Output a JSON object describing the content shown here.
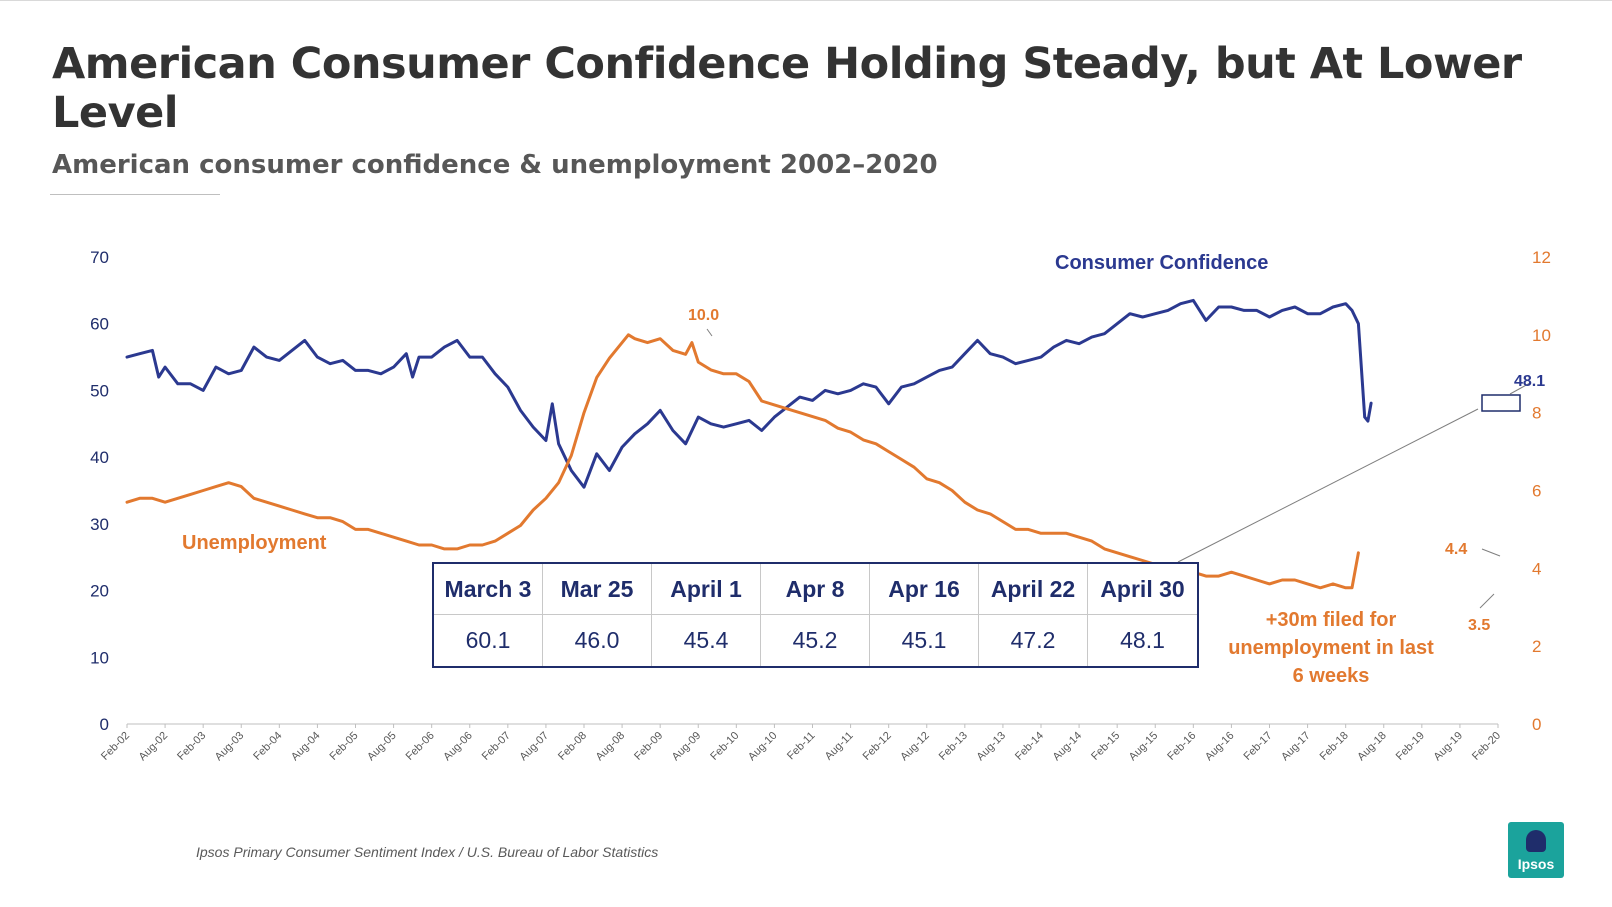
{
  "title": "American Consumer Confidence Holding Steady, but At Lower Level",
  "subtitle": "American consumer confidence & unemployment 2002–2020",
  "source": "Ipsos Primary Consumer Sentiment Index / U.S. Bureau of Labor Statistics",
  "logo_text": "Ipsos",
  "colors": {
    "confidence": "#2b3990",
    "unemployment": "#e2792f",
    "axis": "#bfbfbf"
  },
  "table": {
    "headers": [
      "March 3",
      "Mar 25",
      "April 1",
      "Apr 8",
      "Apr 16",
      "April 22",
      "April 30"
    ],
    "values": [
      "60.1",
      "46.0",
      "45.4",
      "45.2",
      "45.1",
      "47.2",
      "48.1"
    ]
  },
  "chart_data": {
    "type": "line",
    "title": "American consumer confidence & unemployment 2002–2020",
    "x_tick_labels": [
      "Feb-02",
      "Aug-02",
      "Feb-03",
      "Aug-03",
      "Feb-04",
      "Aug-04",
      "Feb-05",
      "Aug-05",
      "Feb-06",
      "Aug-06",
      "Feb-07",
      "Aug-07",
      "Feb-08",
      "Aug-08",
      "Feb-09",
      "Aug-09",
      "Feb-10",
      "Aug-10",
      "Feb-11",
      "Aug-11",
      "Feb-12",
      "Aug-12",
      "Feb-13",
      "Aug-13",
      "Feb-14",
      "Aug-14",
      "Feb-15",
      "Aug-15",
      "Feb-16",
      "Aug-16",
      "Feb-17",
      "Aug-17",
      "Feb-18",
      "Aug-18",
      "Feb-19",
      "Aug-19",
      "Feb-20"
    ],
    "y_left": {
      "ticks": [
        "0",
        "10",
        "20",
        "30",
        "40",
        "50",
        "60",
        "70"
      ],
      "range": [
        0,
        70
      ]
    },
    "y_right": {
      "ticks": [
        "0",
        "2",
        "4",
        "6",
        "8",
        "10",
        "12"
      ],
      "range": [
        0,
        12
      ]
    },
    "series": [
      {
        "name": "Consumer Confidence",
        "axis": "left",
        "points": [
          [
            0,
            55
          ],
          [
            2,
            55.5
          ],
          [
            4,
            56
          ],
          [
            5,
            52
          ],
          [
            6,
            53.5
          ],
          [
            8,
            51
          ],
          [
            10,
            51
          ],
          [
            12,
            50
          ],
          [
            14,
            53.5
          ],
          [
            16,
            52.5
          ],
          [
            18,
            53
          ],
          [
            20,
            56.5
          ],
          [
            22,
            55
          ],
          [
            24,
            54.5
          ],
          [
            26,
            56
          ],
          [
            28,
            57.5
          ],
          [
            30,
            55
          ],
          [
            32,
            54
          ],
          [
            34,
            54.5
          ],
          [
            36,
            53
          ],
          [
            38,
            53
          ],
          [
            40,
            52.5
          ],
          [
            42,
            53.5
          ],
          [
            44,
            55.5
          ],
          [
            45,
            52
          ],
          [
            46,
            55
          ],
          [
            48,
            55
          ],
          [
            50,
            56.5
          ],
          [
            52,
            57.5
          ],
          [
            54,
            55
          ],
          [
            56,
            55
          ],
          [
            58,
            52.5
          ],
          [
            60,
            50.5
          ],
          [
            62,
            47
          ],
          [
            64,
            44.5
          ],
          [
            66,
            42.5
          ],
          [
            67,
            48
          ],
          [
            68,
            42
          ],
          [
            70,
            38
          ],
          [
            72,
            35.5
          ],
          [
            74,
            40.5
          ],
          [
            76,
            38
          ],
          [
            78,
            41.5
          ],
          [
            80,
            43.5
          ],
          [
            82,
            45
          ],
          [
            84,
            47
          ],
          [
            86,
            44
          ],
          [
            88,
            42
          ],
          [
            90,
            46
          ],
          [
            92,
            45
          ],
          [
            94,
            44.5
          ],
          [
            96,
            45
          ],
          [
            98,
            45.5
          ],
          [
            100,
            44
          ],
          [
            102,
            46
          ],
          [
            104,
            47.5
          ],
          [
            106,
            49
          ],
          [
            108,
            48.5
          ],
          [
            110,
            50
          ],
          [
            112,
            49.5
          ],
          [
            114,
            50
          ],
          [
            116,
            51
          ],
          [
            118,
            50.5
          ],
          [
            120,
            48
          ],
          [
            122,
            50.5
          ],
          [
            124,
            51
          ],
          [
            126,
            52
          ],
          [
            128,
            53
          ],
          [
            130,
            53.5
          ],
          [
            132,
            55.5
          ],
          [
            134,
            57.5
          ],
          [
            136,
            55.5
          ],
          [
            138,
            55
          ],
          [
            140,
            54
          ],
          [
            142,
            54.5
          ],
          [
            144,
            55
          ],
          [
            146,
            56.5
          ],
          [
            148,
            57.5
          ],
          [
            150,
            57
          ],
          [
            152,
            58
          ],
          [
            154,
            58.5
          ],
          [
            156,
            60
          ],
          [
            158,
            61.5
          ],
          [
            160,
            61
          ],
          [
            162,
            61.5
          ],
          [
            164,
            62
          ],
          [
            166,
            63
          ],
          [
            168,
            63.5
          ],
          [
            170,
            60.5
          ],
          [
            172,
            62.5
          ],
          [
            174,
            62.5
          ],
          [
            176,
            62
          ],
          [
            178,
            62
          ],
          [
            180,
            61
          ],
          [
            182,
            62
          ],
          [
            184,
            62.5
          ],
          [
            186,
            61.5
          ],
          [
            188,
            61.5
          ],
          [
            190,
            62.5
          ],
          [
            192,
            63
          ],
          [
            193,
            62
          ],
          [
            194,
            60
          ],
          [
            195,
            46
          ],
          [
            195.5,
            45.4
          ],
          [
            196,
            48.1
          ]
        ]
      },
      {
        "name": "Unemployment",
        "axis": "right",
        "points": [
          [
            0,
            5.7
          ],
          [
            2,
            5.8
          ],
          [
            4,
            5.8
          ],
          [
            6,
            5.7
          ],
          [
            8,
            5.8
          ],
          [
            10,
            5.9
          ],
          [
            12,
            6.0
          ],
          [
            14,
            6.1
          ],
          [
            16,
            6.2
          ],
          [
            18,
            6.1
          ],
          [
            20,
            5.8
          ],
          [
            22,
            5.7
          ],
          [
            24,
            5.6
          ],
          [
            26,
            5.5
          ],
          [
            28,
            5.4
          ],
          [
            30,
            5.3
          ],
          [
            32,
            5.3
          ],
          [
            34,
            5.2
          ],
          [
            36,
            5.0
          ],
          [
            38,
            5.0
          ],
          [
            40,
            4.9
          ],
          [
            42,
            4.8
          ],
          [
            44,
            4.7
          ],
          [
            46,
            4.6
          ],
          [
            48,
            4.6
          ],
          [
            50,
            4.5
          ],
          [
            52,
            4.5
          ],
          [
            54,
            4.6
          ],
          [
            56,
            4.6
          ],
          [
            58,
            4.7
          ],
          [
            60,
            4.9
          ],
          [
            62,
            5.1
          ],
          [
            64,
            5.5
          ],
          [
            66,
            5.8
          ],
          [
            68,
            6.2
          ],
          [
            70,
            6.9
          ],
          [
            72,
            8.0
          ],
          [
            74,
            8.9
          ],
          [
            76,
            9.4
          ],
          [
            78,
            9.8
          ],
          [
            79,
            10.0
          ],
          [
            80,
            9.9
          ],
          [
            82,
            9.8
          ],
          [
            84,
            9.9
          ],
          [
            86,
            9.6
          ],
          [
            88,
            9.5
          ],
          [
            89,
            9.8
          ],
          [
            90,
            9.3
          ],
          [
            92,
            9.1
          ],
          [
            94,
            9.0
          ],
          [
            96,
            9.0
          ],
          [
            98,
            8.8
          ],
          [
            100,
            8.3
          ],
          [
            102,
            8.2
          ],
          [
            104,
            8.1
          ],
          [
            106,
            8.0
          ],
          [
            108,
            7.9
          ],
          [
            110,
            7.8
          ],
          [
            112,
            7.6
          ],
          [
            114,
            7.5
          ],
          [
            116,
            7.3
          ],
          [
            118,
            7.2
          ],
          [
            120,
            7.0
          ],
          [
            122,
            6.8
          ],
          [
            124,
            6.6
          ],
          [
            126,
            6.3
          ],
          [
            128,
            6.2
          ],
          [
            130,
            6.0
          ],
          [
            132,
            5.7
          ],
          [
            134,
            5.5
          ],
          [
            136,
            5.4
          ],
          [
            138,
            5.2
          ],
          [
            140,
            5.0
          ],
          [
            142,
            5.0
          ],
          [
            144,
            4.9
          ],
          [
            146,
            4.9
          ],
          [
            148,
            4.9
          ],
          [
            150,
            4.8
          ],
          [
            152,
            4.7
          ],
          [
            154,
            4.5
          ],
          [
            156,
            4.4
          ],
          [
            158,
            4.3
          ],
          [
            160,
            4.2
          ],
          [
            162,
            4.1
          ],
          [
            164,
            4.1
          ],
          [
            166,
            4.0
          ],
          [
            168,
            3.9
          ],
          [
            170,
            3.8
          ],
          [
            172,
            3.8
          ],
          [
            174,
            3.9
          ],
          [
            176,
            3.8
          ],
          [
            178,
            3.7
          ],
          [
            180,
            3.6
          ],
          [
            182,
            3.7
          ],
          [
            184,
            3.7
          ],
          [
            186,
            3.6
          ],
          [
            188,
            3.5
          ],
          [
            190,
            3.6
          ],
          [
            192,
            3.5
          ],
          [
            193,
            3.5
          ],
          [
            194,
            4.4
          ]
        ]
      }
    ],
    "series_labels": {
      "confidence": "Consumer Confidence",
      "unemployment": "Unemployment"
    },
    "annotations": {
      "unemployment_peak": "10.0",
      "confidence_latest": "48.1",
      "unemployment_latest": "4.4",
      "unemployment_prior": "3.5",
      "note_lines": [
        "+30m filed for",
        "unemployment in last",
        "6 weeks"
      ]
    }
  }
}
